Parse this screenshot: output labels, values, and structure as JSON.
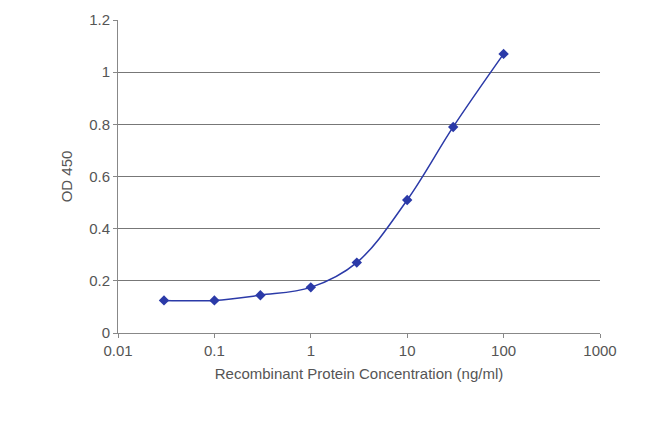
{
  "chart_data": {
    "type": "line",
    "x_label": "Recombinant Protein Concentration (ng/ml)",
    "y_label": "OD 450",
    "x": [
      0.03,
      0.1,
      0.3,
      1,
      3,
      10,
      30,
      100
    ],
    "values": [
      0.125,
      0.125,
      0.145,
      0.175,
      0.27,
      0.51,
      0.79,
      1.07
    ],
    "color": "#2b3aa8",
    "marker": "diamond",
    "line_style": "solid",
    "log": "x",
    "xlim": [
      0.01,
      1000
    ],
    "xticks": [
      0.01,
      0.1,
      1,
      10,
      100,
      1000
    ],
    "ylim": [
      0,
      1.2
    ],
    "yticks": [
      0,
      0.2,
      0.4,
      0.6,
      0.8,
      1,
      1.2
    ],
    "grid": true
  }
}
